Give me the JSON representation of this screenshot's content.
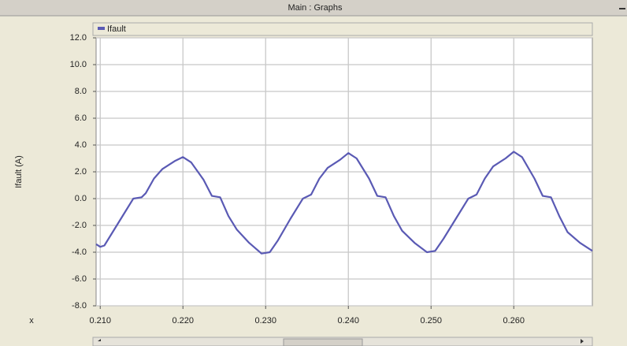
{
  "window_title": "Main : Graphs",
  "chart_data": {
    "type": "line",
    "y_label": "Ifault (A)",
    "x_label": "x",
    "legend": "top-left",
    "grid": true,
    "xlim": [
      0.2095,
      0.2695
    ],
    "ylim": [
      -8,
      12
    ],
    "xticks": [
      {
        "value": 0.21,
        "label": "0.210"
      },
      {
        "value": 0.22,
        "label": "0.220"
      },
      {
        "value": 0.23,
        "label": "0.230"
      },
      {
        "value": 0.24,
        "label": "0.240"
      },
      {
        "value": 0.25,
        "label": "0.250"
      },
      {
        "value": 0.26,
        "label": "0.260"
      }
    ],
    "yticks": [
      {
        "value": 12,
        "label": "12.0"
      },
      {
        "value": 10,
        "label": "10.0"
      },
      {
        "value": 8,
        "label": "8.0"
      },
      {
        "value": 6,
        "label": "6.0"
      },
      {
        "value": 4,
        "label": "4.0"
      },
      {
        "value": 2,
        "label": "2.0"
      },
      {
        "value": 0,
        "label": "0.0"
      },
      {
        "value": -2,
        "label": "-2.0"
      },
      {
        "value": -4,
        "label": "-4.0"
      },
      {
        "value": -6,
        "label": "-6.0"
      },
      {
        "value": -8,
        "label": "-8.0"
      }
    ],
    "x": [
      0.2095,
      0.21,
      0.2105,
      0.2115,
      0.213,
      0.214,
      0.215,
      0.2155,
      0.2165,
      0.2175,
      0.219,
      0.22,
      0.221,
      0.2225,
      0.2235,
      0.2245,
      0.2255,
      0.2265,
      0.228,
      0.2295,
      0.2305,
      0.2315,
      0.233,
      0.2345,
      0.2355,
      0.2365,
      0.2375,
      0.239,
      0.24,
      0.241,
      0.2425,
      0.2435,
      0.2445,
      0.2455,
      0.2465,
      0.248,
      0.2495,
      0.2505,
      0.2515,
      0.253,
      0.2545,
      0.2555,
      0.2565,
      0.2575,
      0.259,
      0.26,
      0.261,
      0.2625,
      0.2635,
      0.2645,
      0.2655,
      0.2665,
      0.268,
      0.2695
    ],
    "series": [
      {
        "name": "Ifault",
        "color": "#5a5ab4",
        "values": [
          -3.4,
          -3.6,
          -3.5,
          -2.5,
          -1.0,
          0.0,
          0.1,
          0.4,
          1.5,
          2.2,
          2.8,
          3.1,
          2.7,
          1.4,
          0.2,
          0.1,
          -1.3,
          -2.3,
          -3.3,
          -4.1,
          -4.0,
          -3.1,
          -1.5,
          0.0,
          0.3,
          1.5,
          2.3,
          2.9,
          3.4,
          3.0,
          1.5,
          0.2,
          0.1,
          -1.3,
          -2.4,
          -3.3,
          -4.0,
          -3.9,
          -3.0,
          -1.5,
          0.0,
          0.3,
          1.5,
          2.4,
          3.0,
          3.5,
          3.1,
          1.5,
          0.2,
          0.1,
          -1.3,
          -2.5,
          -3.3,
          -3.9
        ]
      }
    ]
  }
}
